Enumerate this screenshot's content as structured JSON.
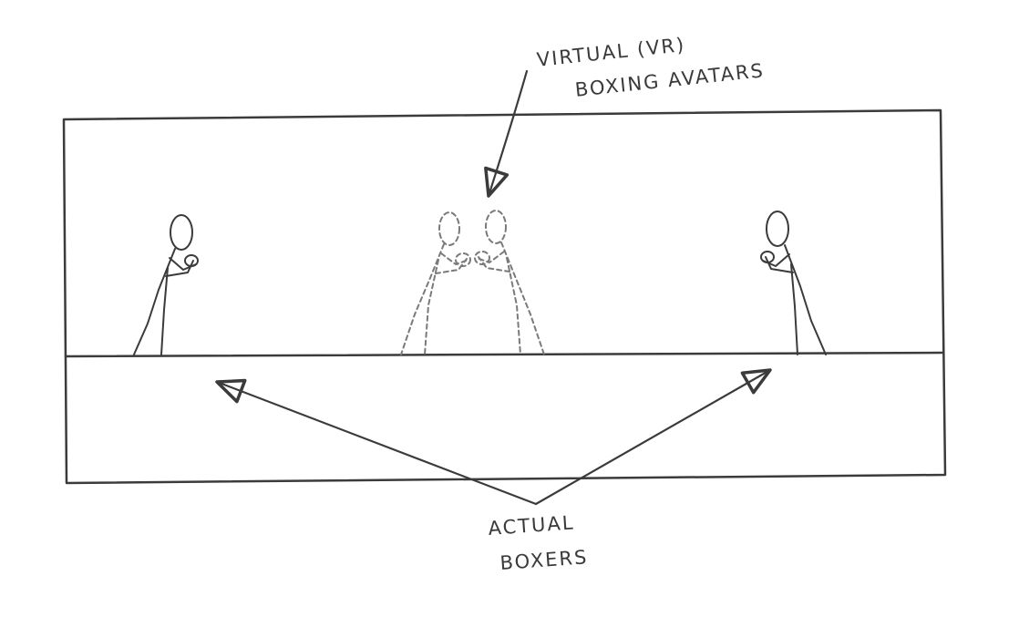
{
  "annotations": {
    "virtual_avatars": {
      "line1": "VIRTUAL (VR)",
      "line2": "BOXING AVATARS"
    },
    "actual_boxers": {
      "line1": "ACTUAL",
      "line2": "BOXERS"
    }
  },
  "figures": {
    "actual_boxers": [
      "left-boxer",
      "right-boxer"
    ],
    "virtual_avatars": [
      "left-avatar",
      "right-avatar"
    ]
  },
  "colors": {
    "pencil": "#3b3b3b",
    "ghost": "#7a7a7a",
    "background": "#ffffff"
  }
}
